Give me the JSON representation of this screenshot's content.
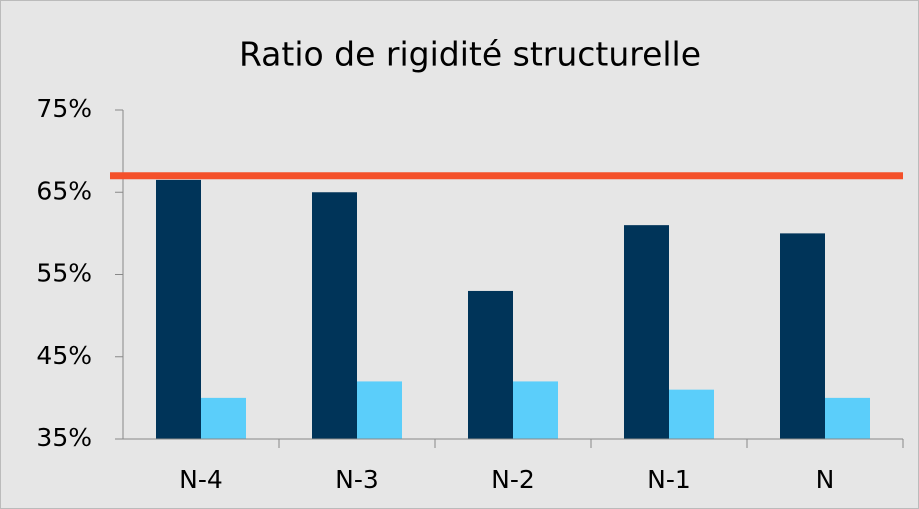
{
  "chart_data": {
    "type": "bar",
    "title": "Ratio de rigidité structurelle",
    "categories": [
      "N-4",
      "N-3",
      "N-2",
      "N-1",
      "N"
    ],
    "series": [
      {
        "color": "#003459",
        "values": [
          66.5,
          65,
          53,
          61,
          60
        ]
      },
      {
        "color": "#5bcefa",
        "values": [
          40,
          42,
          42,
          41,
          40
        ]
      }
    ],
    "reference_line": {
      "value": 67,
      "color": "#f4502a"
    },
    "ylim": [
      35,
      75
    ],
    "yticks": [
      {
        "value": 35,
        "label": "35%"
      },
      {
        "value": 45,
        "label": "45%"
      },
      {
        "value": 55,
        "label": "55%"
      },
      {
        "value": 65,
        "label": "65%"
      },
      {
        "value": 75,
        "label": "75%"
      }
    ],
    "grid": false
  }
}
